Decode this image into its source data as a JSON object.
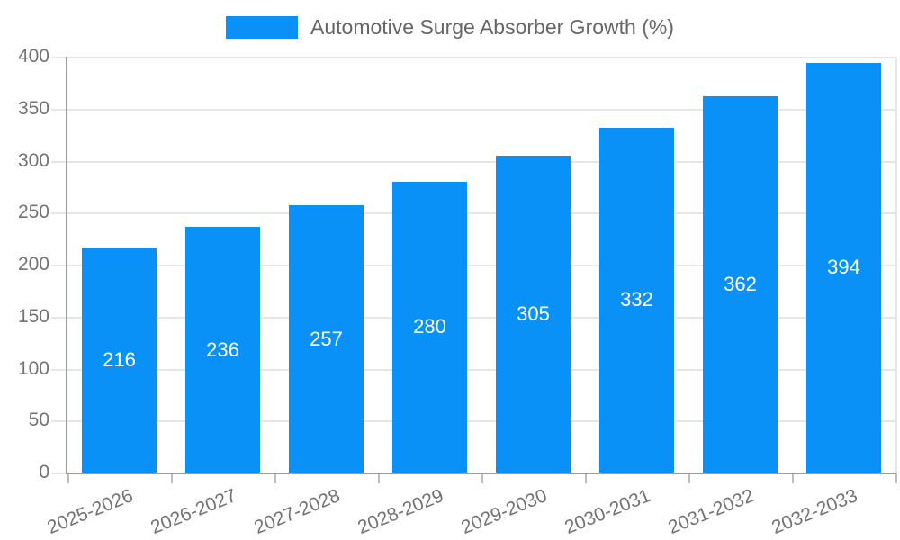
{
  "legend": {
    "label": "Automotive Surge Absorber Growth (%)"
  },
  "chart_data": {
    "type": "bar",
    "title": "Automotive Surge Absorber Growth (%)",
    "categories": [
      "2025-2026",
      "2026-2027",
      "2027-2028",
      "2028-2029",
      "2029-2030",
      "2030-2031",
      "2031-2032",
      "2032-2033"
    ],
    "values": [
      216,
      236,
      257,
      280,
      305,
      332,
      362,
      394
    ],
    "xlabel": "",
    "ylabel": "",
    "ylim": [
      0,
      400
    ],
    "ytick_step": 50,
    "yticks": [
      0,
      50,
      100,
      150,
      200,
      250,
      300,
      350,
      400
    ],
    "grid": true,
    "legend_position": "top",
    "bar_value_labels_inside": true
  },
  "colors": {
    "bar": "#0a91f8",
    "axis": "#9c9c9c",
    "grid": "#e6e6e6",
    "tick_text": "#737373",
    "title_text": "#666666",
    "bar_label": "#ffffff"
  }
}
